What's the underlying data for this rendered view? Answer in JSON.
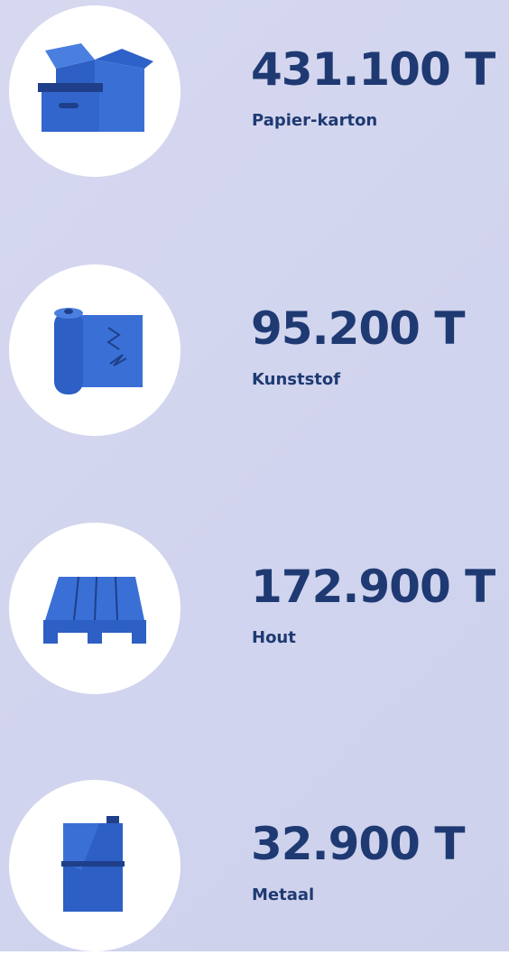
{
  "items": [
    {
      "amount": "431.100 T",
      "label": "Papier-karton"
    },
    {
      "amount": "95.200 T",
      "label": "Kunststof"
    },
    {
      "amount": "172.900 T",
      "label": "Hout"
    },
    {
      "amount": "32.900 T",
      "label": "Metaal"
    }
  ]
}
